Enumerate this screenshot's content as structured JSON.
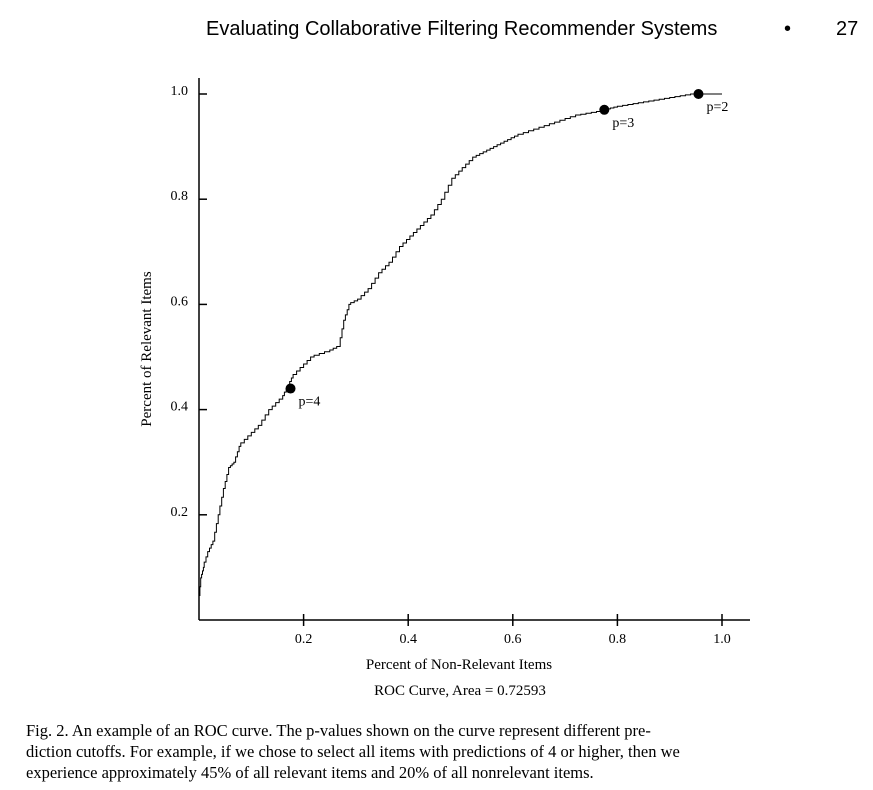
{
  "header": {
    "title": "Evaluating Collaborative Filtering Recommender Systems",
    "bullet": "•",
    "page_number": "27"
  },
  "chart_data": {
    "type": "line",
    "xlabel": "Percent of Non-Relevant Items",
    "ylabel": "Percent of Relevant Items",
    "subtitle": "ROC Curve, Area = 0.72593",
    "xlim": [
      0,
      1.0
    ],
    "ylim": [
      0,
      1.0
    ],
    "xticks": [
      "0.2",
      "0.4",
      "0.6",
      "0.8",
      "1.0"
    ],
    "yticks": [
      "0.2",
      "0.4",
      "0.6",
      "0.8",
      "1.0"
    ],
    "grid": false,
    "series": [
      {
        "x": [
          0.0,
          0.005,
          0.01,
          0.02,
          0.03,
          0.04,
          0.05,
          0.06,
          0.07,
          0.08,
          0.1,
          0.12,
          0.14,
          0.16,
          0.17,
          0.18,
          0.2,
          0.22,
          0.25,
          0.27,
          0.28,
          0.29,
          0.31,
          0.33,
          0.35,
          0.37,
          0.39,
          0.41,
          0.43,
          0.45,
          0.47,
          0.49,
          0.51,
          0.53,
          0.55,
          0.57,
          0.59,
          0.61,
          0.64,
          0.67,
          0.7,
          0.73,
          0.76,
          0.78,
          0.8,
          0.83,
          0.86,
          0.89,
          0.92,
          0.95,
          0.97,
          1.0
        ],
        "y": [
          0.03,
          0.08,
          0.1,
          0.13,
          0.15,
          0.2,
          0.25,
          0.29,
          0.3,
          0.33,
          0.35,
          0.37,
          0.4,
          0.42,
          0.44,
          0.46,
          0.48,
          0.5,
          0.51,
          0.52,
          0.57,
          0.6,
          0.61,
          0.63,
          0.66,
          0.68,
          0.71,
          0.73,
          0.75,
          0.77,
          0.8,
          0.84,
          0.86,
          0.88,
          0.89,
          0.9,
          0.91,
          0.92,
          0.93,
          0.94,
          0.95,
          0.96,
          0.965,
          0.97,
          0.975,
          0.98,
          0.985,
          0.99,
          0.995,
          1.0,
          1.0,
          1.0
        ]
      }
    ],
    "points": [
      {
        "label": "p=4",
        "x": 0.175,
        "y": 0.44
      },
      {
        "label": "p=3",
        "x": 0.775,
        "y": 0.97
      },
      {
        "label": "p=2",
        "x": 0.955,
        "y": 1.0
      }
    ]
  },
  "caption": {
    "lines": [
      "Fig. 2.   An example of an ROC curve. The p-values shown on the curve represent different pre-",
      "diction cutoffs. For example, if we chose to select all items with predictions of 4 or higher, then we",
      "experience approximately 45% of all relevant items and 20% of all nonrelevant items."
    ]
  }
}
